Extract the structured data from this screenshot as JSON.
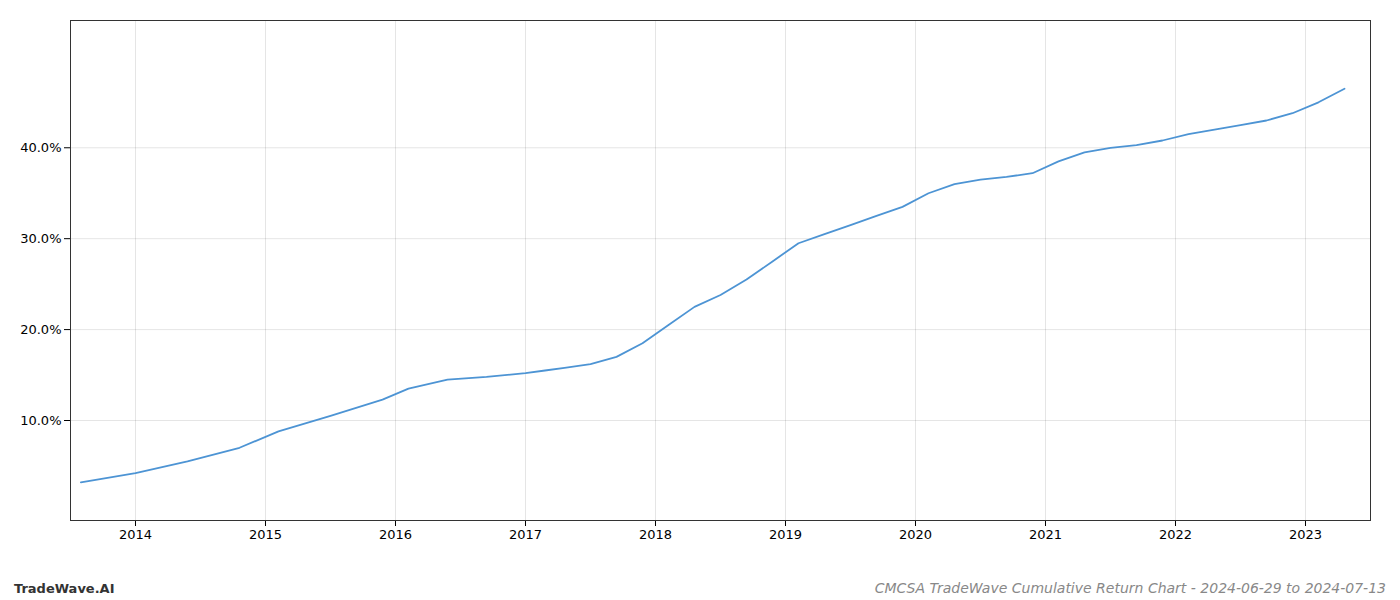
{
  "chart_data": {
    "type": "line",
    "title": "CMCSA TradeWave Cumulative Return Chart - 2024-06-29 to 2024-07-13",
    "annotations": [
      "TradeWave.AI"
    ],
    "x": [
      2013.58,
      2014.0,
      2014.4,
      2014.8,
      2015.1,
      2015.5,
      2015.9,
      2016.1,
      2016.4,
      2016.7,
      2017.0,
      2017.15,
      2017.3,
      2017.5,
      2017.7,
      2017.9,
      2018.1,
      2018.3,
      2018.5,
      2018.7,
      2018.9,
      2019.1,
      2019.3,
      2019.5,
      2019.7,
      2019.9,
      2020.1,
      2020.3,
      2020.5,
      2020.7,
      2020.9,
      2021.1,
      2021.3,
      2021.5,
      2021.7,
      2021.9,
      2022.1,
      2022.3,
      2022.5,
      2022.7,
      2022.9,
      2023.1,
      2023.3
    ],
    "values": [
      3.2,
      4.2,
      5.5,
      7.0,
      8.8,
      10.5,
      12.3,
      13.5,
      14.5,
      14.8,
      15.2,
      15.5,
      15.8,
      16.2,
      17.0,
      18.5,
      20.5,
      22.5,
      23.8,
      25.5,
      27.5,
      29.5,
      30.5,
      31.5,
      32.5,
      33.5,
      35.0,
      36.0,
      36.5,
      36.8,
      37.2,
      38.5,
      39.5,
      40.0,
      40.3,
      40.8,
      41.5,
      42.0,
      42.5,
      43.0,
      43.8,
      45.0,
      46.5
    ],
    "color": "#4d94d4",
    "xlim": [
      2013.5,
      2023.5
    ],
    "ylim": [
      -1,
      54
    ],
    "xticks": [
      2014,
      2015,
      2016,
      2017,
      2018,
      2019,
      2020,
      2021,
      2022,
      2023
    ],
    "yticks": [
      {
        "value": 10.0,
        "label": "10.0%"
      },
      {
        "value": 20.0,
        "label": "20.0%"
      },
      {
        "value": 30.0,
        "label": "30.0%"
      },
      {
        "value": 40.0,
        "label": "40.0%"
      }
    ],
    "grid": true
  }
}
